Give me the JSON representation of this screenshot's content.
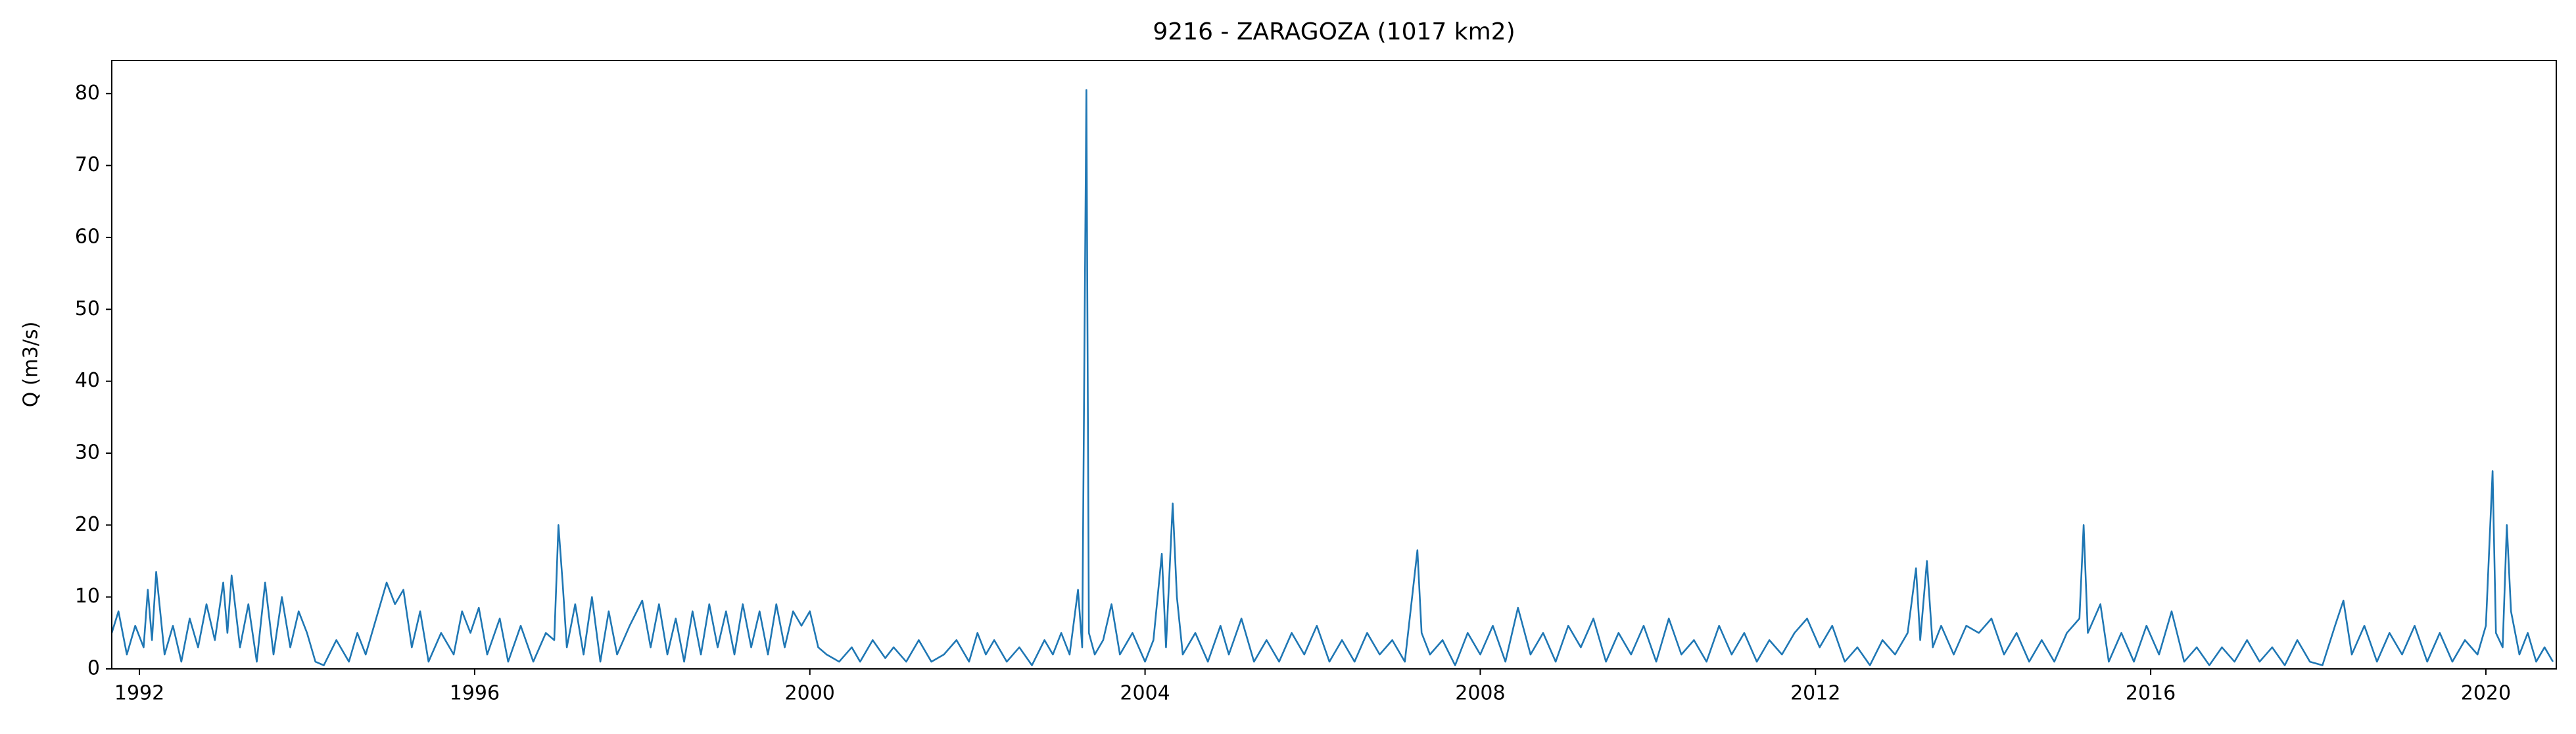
{
  "chart_data": {
    "type": "line",
    "title": "9216 - ZARAGOZA (1017 km2)",
    "y_label": "Q (m3/s)",
    "color": "#1f77b4",
    "xlim": [
      1991.67,
      2020.84
    ],
    "xticks": [
      1992,
      1996,
      2000,
      2004,
      2008,
      2012,
      2016,
      2020
    ],
    "ylim": [
      0,
      84.6
    ],
    "yticks": [
      0,
      10,
      20,
      30,
      40,
      50,
      60,
      70,
      80
    ],
    "grid": false,
    "x": [
      1991.67,
      1991.75,
      1991.85,
      1991.95,
      1992.05,
      1992.1,
      1992.15,
      1992.2,
      1992.3,
      1992.4,
      1992.5,
      1992.6,
      1992.7,
      1992.8,
      1992.9,
      1993.0,
      1993.05,
      1993.1,
      1993.2,
      1993.3,
      1993.4,
      1993.5,
      1993.6,
      1993.7,
      1993.8,
      1993.9,
      1994.0,
      1994.1,
      1994.2,
      1994.35,
      1994.5,
      1994.6,
      1994.7,
      1994.85,
      1994.95,
      1995.05,
      1995.15,
      1995.25,
      1995.35,
      1995.45,
      1995.6,
      1995.75,
      1995.85,
      1995.95,
      1996.05,
      1996.15,
      1996.3,
      1996.4,
      1996.55,
      1996.7,
      1996.85,
      1996.95,
      1997.0,
      1997.05,
      1997.1,
      1997.2,
      1997.3,
      1997.4,
      1997.5,
      1997.6,
      1997.7,
      1997.85,
      1998.0,
      1998.1,
      1998.2,
      1998.3,
      1998.4,
      1998.5,
      1998.6,
      1998.7,
      1998.8,
      1998.9,
      1999.0,
      1999.1,
      1999.2,
      1999.3,
      1999.4,
      1999.5,
      1999.6,
      1999.7,
      1999.8,
      1999.9,
      2000.0,
      2000.1,
      2000.2,
      2000.35,
      2000.5,
      2000.6,
      2000.75,
      2000.9,
      2001.0,
      2001.15,
      2001.3,
      2001.45,
      2001.6,
      2001.75,
      2001.9,
      2002.0,
      2002.1,
      2002.2,
      2002.35,
      2002.5,
      2002.65,
      2002.8,
      2002.9,
      2003.0,
      2003.1,
      2003.2,
      2003.25,
      2003.3,
      2003.33,
      2003.4,
      2003.5,
      2003.6,
      2003.7,
      2003.85,
      2004.0,
      2004.1,
      2004.2,
      2004.25,
      2004.33,
      2004.38,
      2004.45,
      2004.6,
      2004.75,
      2004.9,
      2005.0,
      2005.15,
      2005.3,
      2005.45,
      2005.6,
      2005.75,
      2005.9,
      2006.05,
      2006.2,
      2006.35,
      2006.5,
      2006.65,
      2006.8,
      2006.95,
      2007.1,
      2007.25,
      2007.3,
      2007.4,
      2007.55,
      2007.7,
      2007.85,
      2008.0,
      2008.15,
      2008.3,
      2008.45,
      2008.6,
      2008.75,
      2008.9,
      2009.05,
      2009.2,
      2009.35,
      2009.5,
      2009.65,
      2009.8,
      2009.95,
      2010.1,
      2010.25,
      2010.4,
      2010.55,
      2010.7,
      2010.85,
      2011.0,
      2011.15,
      2011.3,
      2011.45,
      2011.6,
      2011.75,
      2011.9,
      2012.05,
      2012.2,
      2012.35,
      2012.5,
      2012.65,
      2012.8,
      2012.95,
      2013.1,
      2013.2,
      2013.25,
      2013.33,
      2013.4,
      2013.5,
      2013.65,
      2013.8,
      2013.95,
      2014.1,
      2014.25,
      2014.4,
      2014.55,
      2014.7,
      2014.85,
      2015.0,
      2015.15,
      2015.2,
      2015.25,
      2015.4,
      2015.5,
      2015.65,
      2015.8,
      2015.95,
      2016.1,
      2016.25,
      2016.4,
      2016.55,
      2016.7,
      2016.85,
      2017.0,
      2017.15,
      2017.3,
      2017.45,
      2017.6,
      2017.75,
      2017.9,
      2018.05,
      2018.2,
      2018.3,
      2018.4,
      2018.55,
      2018.7,
      2018.85,
      2019.0,
      2019.15,
      2019.3,
      2019.45,
      2019.6,
      2019.75,
      2019.9,
      2020.0,
      2020.08,
      2020.12,
      2020.2,
      2020.25,
      2020.3,
      2020.4,
      2020.5,
      2020.6,
      2020.7,
      2020.8
    ],
    "values": [
      5,
      8,
      2,
      6,
      3,
      11,
      4,
      13.5,
      2,
      6,
      1,
      7,
      3,
      9,
      4,
      12,
      5,
      13,
      3,
      9,
      1,
      12,
      2,
      10,
      3,
      8,
      5,
      1,
      0.5,
      4,
      1,
      5,
      2,
      8,
      12,
      9,
      11,
      3,
      8,
      1,
      5,
      2,
      8,
      5,
      8.5,
      2,
      7,
      1,
      6,
      1,
      5,
      4,
      20,
      12,
      3,
      9,
      2,
      10,
      1,
      8,
      2,
      6,
      9.5,
      3,
      9,
      2,
      7,
      1,
      8,
      2,
      9,
      3,
      8,
      2,
      9,
      3,
      8,
      2,
      9,
      3,
      8,
      6,
      8,
      3,
      2,
      1,
      3,
      1,
      4,
      1.5,
      3,
      1,
      4,
      1,
      2,
      4,
      1,
      5,
      2,
      4,
      1,
      3,
      0.5,
      4,
      2,
      5,
      2,
      11,
      3,
      80.5,
      5,
      2,
      4,
      9,
      2,
      5,
      1,
      4,
      16,
      3,
      23,
      10,
      2,
      5,
      1,
      6,
      2,
      7,
      1,
      4,
      1,
      5,
      2,
      6,
      1,
      4,
      1,
      5,
      2,
      4,
      1,
      16.5,
      5,
      2,
      4,
      0.5,
      5,
      2,
      6,
      1,
      8.5,
      2,
      5,
      1,
      6,
      3,
      7,
      1,
      5,
      2,
      6,
      1,
      7,
      2,
      4,
      1,
      6,
      2,
      5,
      1,
      4,
      2,
      5,
      7,
      3,
      6,
      1,
      3,
      0.5,
      4,
      2,
      5,
      14,
      4,
      15,
      3,
      6,
      2,
      6,
      5,
      7,
      2,
      5,
      1,
      4,
      1,
      5,
      7,
      20,
      5,
      9,
      1,
      5,
      1,
      6,
      2,
      8,
      1,
      3,
      0.5,
      3,
      1,
      4,
      1,
      3,
      0.5,
      4,
      1,
      0.5,
      6,
      9.5,
      2,
      6,
      1,
      5,
      2,
      6,
      1,
      5,
      1,
      4,
      2,
      6,
      27.5,
      5,
      3,
      20,
      8,
      2,
      5,
      1,
      3,
      1
    ]
  }
}
